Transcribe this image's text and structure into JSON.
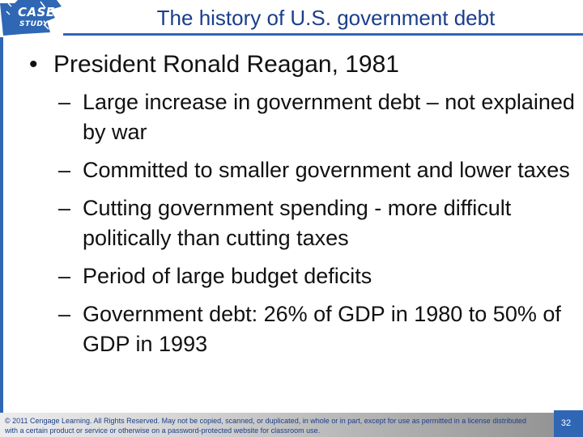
{
  "header": {
    "logo": {
      "line1": "CASE",
      "line2": "STUDY"
    },
    "title": "The history of U.S. government debt"
  },
  "content": {
    "bullet": {
      "marker": "•",
      "text": "President Ronald Reagan, 1981"
    },
    "sub_marker": "–",
    "subitems": [
      "Large increase in government debt – not explained by war",
      "Committed to smaller government and lower taxes",
      "Cutting government spending - more difficult politically than cutting taxes",
      "Period of large budget deficits",
      "Government debt: 26% of GDP in 1980 to 50% of GDP in 1993"
    ]
  },
  "footer": {
    "copyright": "© 2011 Cengage Learning. All Rights Reserved. May not be copied, scanned, or duplicated, in whole or in part, except for use as permitted in a license distributed with a certain product or service or otherwise on a password-protected website for classroom use.",
    "page_number": "32"
  },
  "colors": {
    "accent": "#2f67b5",
    "title": "#1a3e8c",
    "text": "#111111"
  }
}
